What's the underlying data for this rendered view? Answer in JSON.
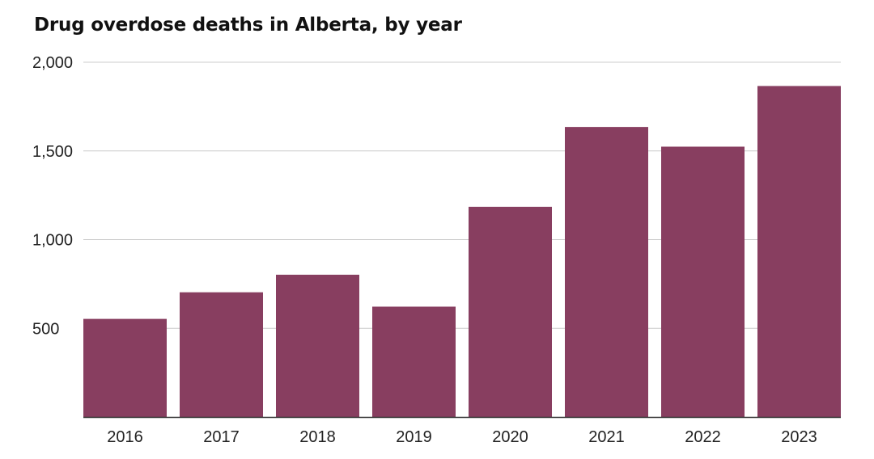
{
  "chart_data": {
    "type": "bar",
    "title": "Drug overdose deaths in Alberta, by year",
    "categories": [
      "2016",
      "2017",
      "2018",
      "2019",
      "2020",
      "2021",
      "2022",
      "2023"
    ],
    "values": [
      553,
      703,
      802,
      622,
      1185,
      1635,
      1524,
      1866
    ],
    "ylim": [
      0,
      2000
    ],
    "yticks": [
      500,
      1000,
      1500,
      2000
    ],
    "ytick_labels": [
      "500",
      "1,000",
      "1,500",
      "2,000"
    ],
    "grid": true,
    "bar_color": "#883e60",
    "grid_color": "#cccccc",
    "axis_color": "#333333",
    "legend": "none"
  }
}
